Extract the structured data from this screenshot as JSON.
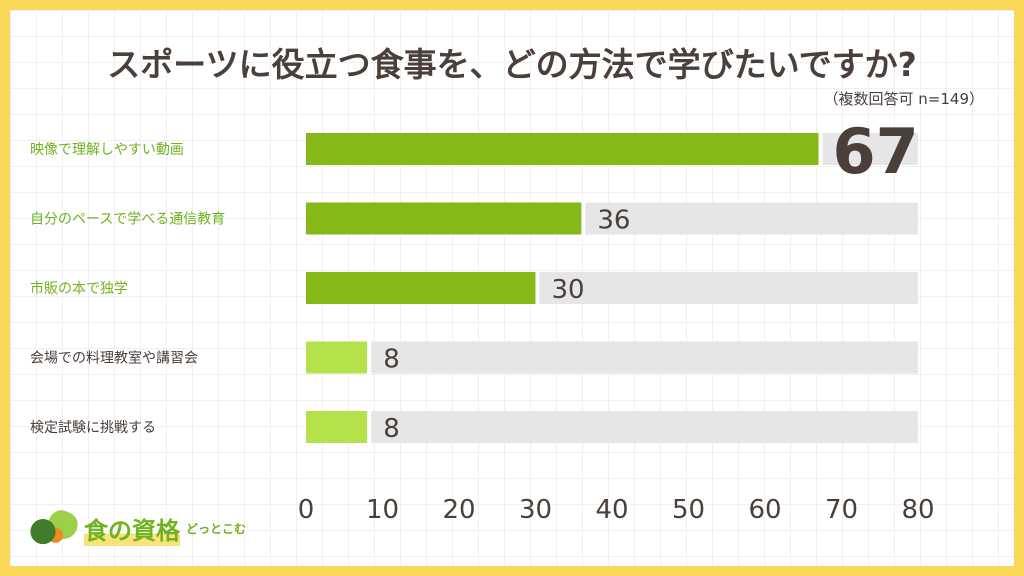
{
  "title": "スポーツに役立つ食事を、どの方法で学びたいですか?",
  "note": "（複数回答可 n=149）",
  "logo": {
    "name": "食の資格",
    "sub": "どっとこむ"
  },
  "chart_data": {
    "type": "bar",
    "orientation": "horizontal",
    "title": "スポーツに役立つ食事を、どの方法で学びたいですか?",
    "categories": [
      "映像で理解しやすい動画",
      "自分のペースで学べる通信教育",
      "市販の本で独学",
      "会場での料理教室や講習会",
      "検定試験に挑戦する"
    ],
    "values": [
      67,
      36,
      30,
      8,
      8
    ],
    "xlim": [
      0,
      80
    ],
    "xticks": [
      0,
      10,
      20,
      30,
      40,
      50,
      60,
      70,
      80
    ],
    "colors": {
      "highlight": "#86b817",
      "normal": "#b5e24a",
      "track": "#e6e6e6",
      "label_highlight": "#6fb320",
      "label_normal": "#4a3f3a",
      "value": "#4a3f3a"
    },
    "highlighted": [
      true,
      true,
      true,
      false,
      false
    ]
  }
}
